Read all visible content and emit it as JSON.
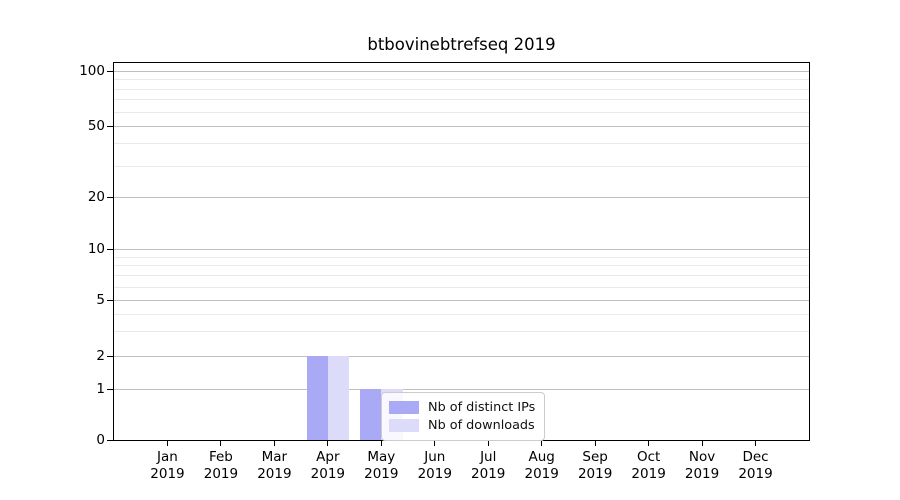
{
  "title": "btbovinebtrefseq 2019",
  "colors": {
    "distinct_ips": "#a9a9f5",
    "downloads": "#dcdcfa",
    "grid_major": "#bfbfbf",
    "grid_minor": "#e9e9e9",
    "axis": "#000000",
    "text": "#000000",
    "legend_border": "#cccccc"
  },
  "legend": {
    "items": [
      {
        "label": "Nb of distinct IPs",
        "color_key": "distinct_ips"
      },
      {
        "label": "Nb of downloads",
        "color_key": "downloads"
      }
    ]
  },
  "chart_data": {
    "type": "bar",
    "title": "btbovinebtrefseq 2019",
    "categories": [
      "Jan 2019",
      "Feb 2019",
      "Mar 2019",
      "Apr 2019",
      "May 2019",
      "Jun 2019",
      "Jul 2019",
      "Aug 2019",
      "Sep 2019",
      "Oct 2019",
      "Nov 2019",
      "Dec 2019"
    ],
    "series": [
      {
        "name": "Nb of distinct IPs",
        "color_key": "distinct_ips",
        "values": [
          0,
          0,
          0,
          2,
          1,
          0,
          0,
          0,
          0,
          0,
          0,
          0
        ]
      },
      {
        "name": "Nb of downloads",
        "color_key": "downloads",
        "values": [
          0,
          0,
          0,
          2,
          1,
          0,
          0,
          0,
          0,
          0,
          0,
          0
        ]
      }
    ],
    "xlabel": "",
    "ylabel": "",
    "yscale": "symlog",
    "ylim": [
      0,
      115
    ],
    "y_major_ticks": [
      0,
      1,
      2,
      5,
      10,
      20,
      50,
      100
    ],
    "y_minor_ticks": [
      3,
      4,
      6,
      7,
      8,
      9,
      30,
      40,
      60,
      70,
      80,
      90
    ],
    "grid": true,
    "legend_position": "inside-bottom-center",
    "bar_group_width_fraction": 0.8
  }
}
